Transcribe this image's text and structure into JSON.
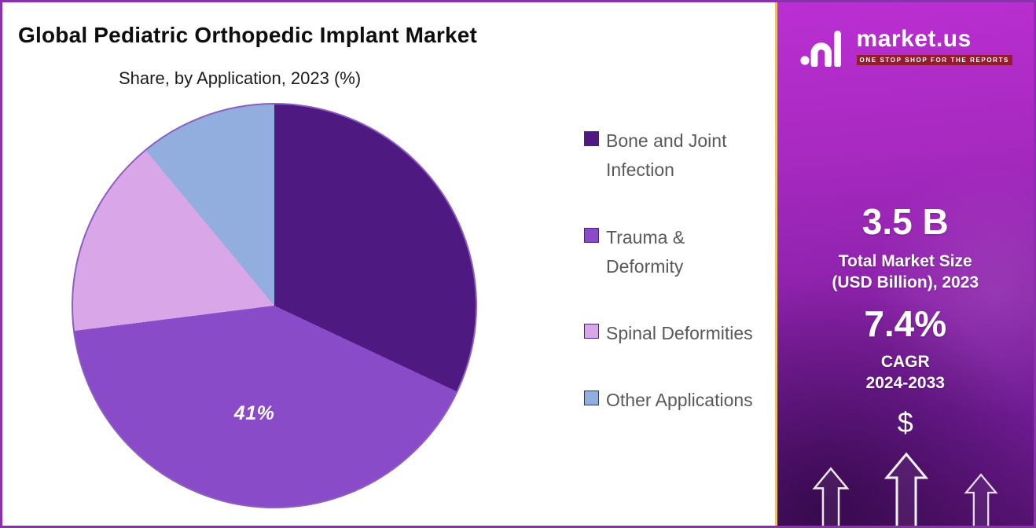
{
  "main": {
    "title": "Global Pediatric Orthopedic Implant Market",
    "subtitle": "Share, by Application, 2023 (%)"
  },
  "chart_data": {
    "type": "pie",
    "title": "Global Pediatric Orthopedic Implant Market Share, by Application, 2023 (%)",
    "direction": "clockwise",
    "start_angle_deg": 0,
    "legend_position": "right",
    "outline_color": "#8a5fc0",
    "slices": [
      {
        "label": "Bone and Joint Infection",
        "value": 32,
        "color": "#4e1a82",
        "data_label": ""
      },
      {
        "label": "Trauma & Deformity",
        "value": 41,
        "color": "#8a4bc9",
        "data_label": "41%"
      },
      {
        "label": "Spinal Deformities",
        "value": 16,
        "color": "#d9a7e8",
        "data_label": ""
      },
      {
        "label": "Other Applications",
        "value": 11,
        "color": "#92aede",
        "data_label": ""
      }
    ]
  },
  "sidebar": {
    "logo_text": "market.us",
    "logo_tagline": "ONE STOP SHOP FOR THE REPORTS",
    "market_size_value": "3.5 B",
    "market_size_label": "Total Market Size\n(USD Billion), 2023",
    "cagr_value": "7.4%",
    "cagr_label": "CAGR\n2024-2033",
    "dollar_symbol": "$",
    "accent_colors": {
      "gradient_top": "#bb2fd2",
      "gradient_bottom": "#571372",
      "tagline_background": "#971b2f",
      "left_border": "#e7c36b"
    }
  }
}
